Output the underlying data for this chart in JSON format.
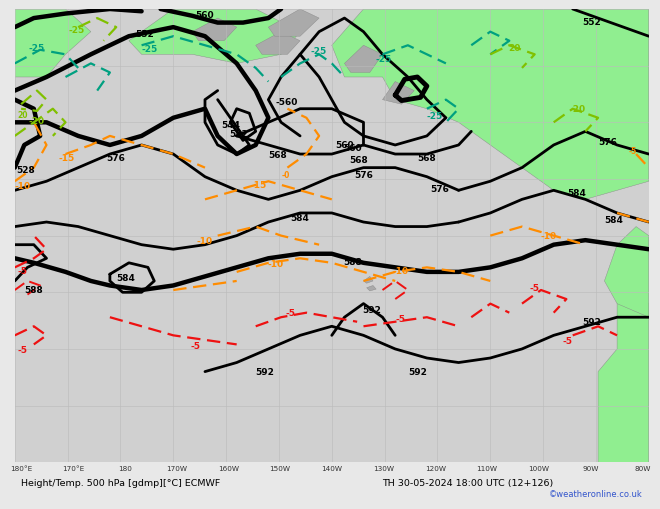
{
  "title": "Height/Temp. 500 hPa [gdmp][°C] ECMWF",
  "subtitle": "TH 30-05-2024 18:00 UTC (12+126)",
  "copyright": "©weatheronline.co.uk",
  "map_bg": "#d0d0d0",
  "land_green": "#90ee90",
  "land_gray": "#aaaaaa",
  "grid_color": "#bbbbbb",
  "bar_bg": "#e8e8e8",
  "black": "#000000",
  "orange": "#ff8c00",
  "teal": "#00a080",
  "lime": "#80c000",
  "red": "#ee1111",
  "tick_labels": [
    "180°E",
    "170°E",
    "180",
    "170W",
    "160W",
    "150W",
    "140W",
    "130W",
    "120W",
    "110W",
    "100W",
    "90W",
    "80W"
  ]
}
